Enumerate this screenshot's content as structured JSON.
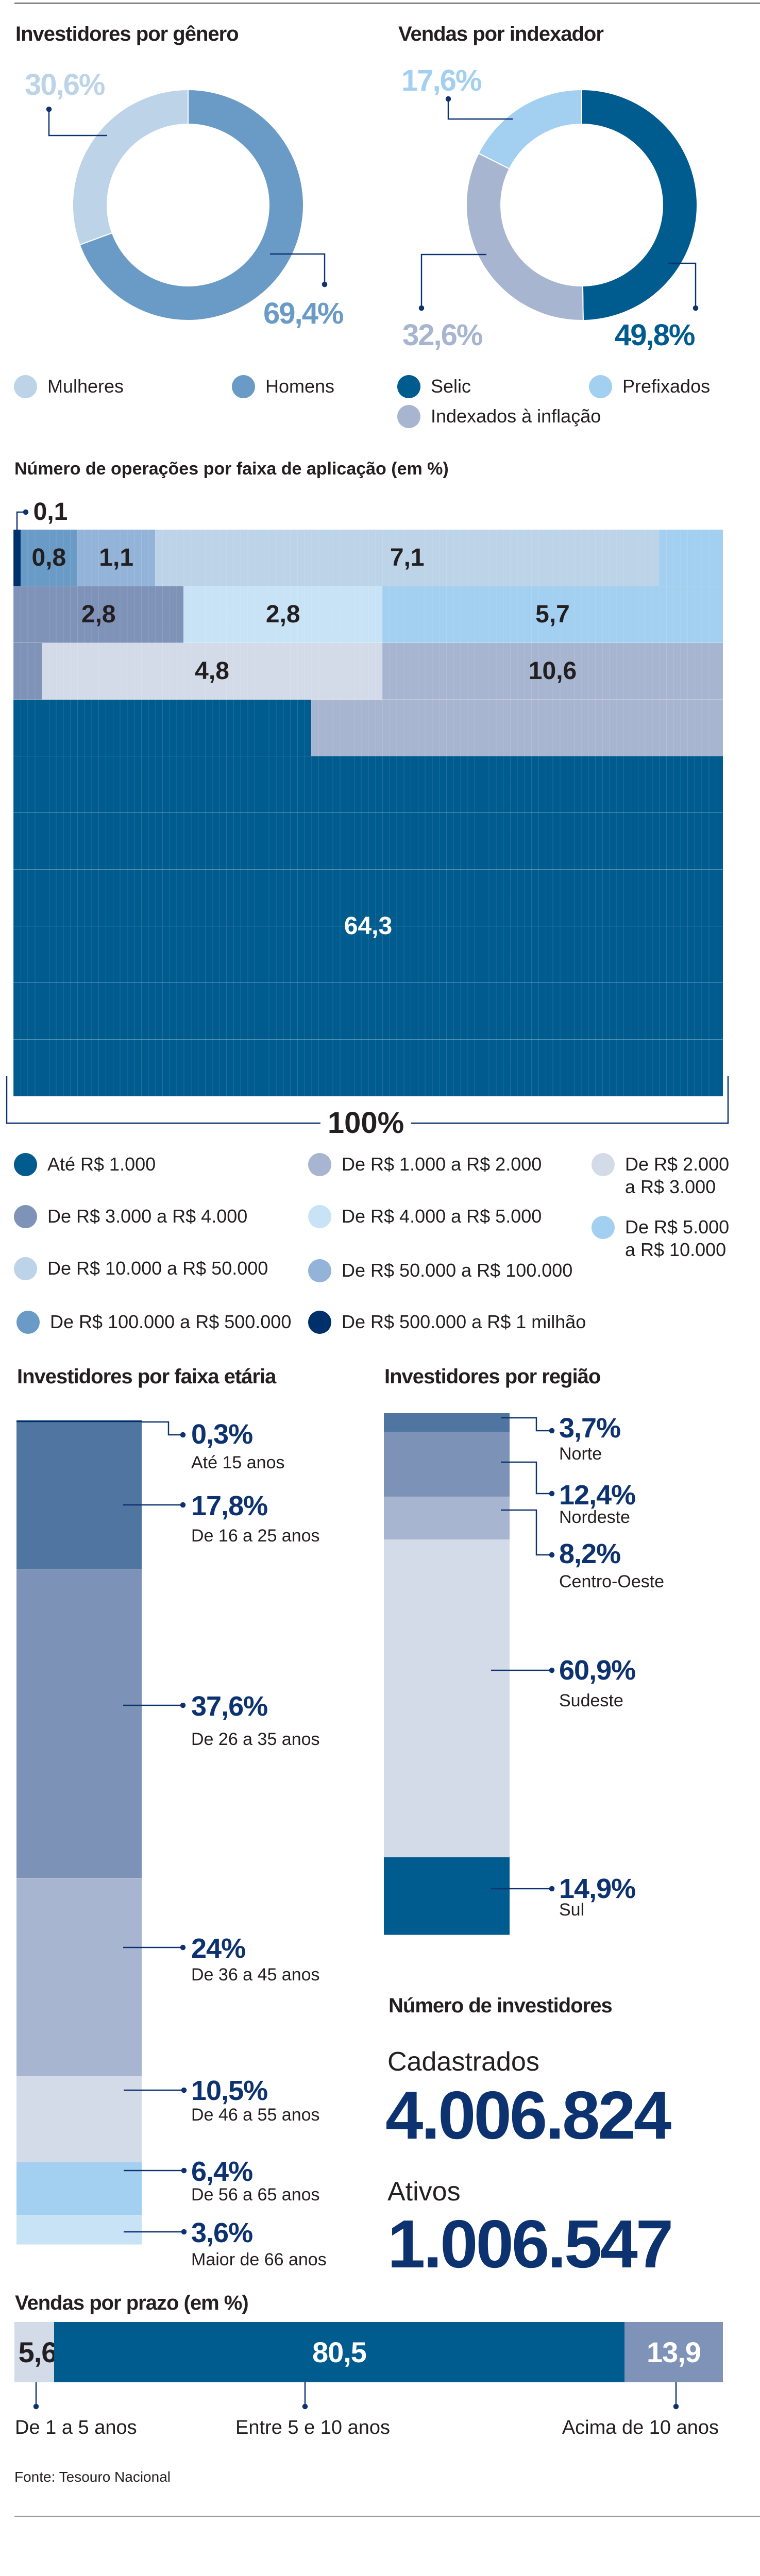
{
  "colors": {
    "navy_text": "#0d3270",
    "leader": "#0d3270"
  },
  "chart_data": [
    {
      "id": "genero",
      "type": "pie",
      "title": "Investidores por gênero",
      "slices": [
        {
          "name": "Homens",
          "value": 69.4,
          "label": "69,4%",
          "color": "#6a9bc6"
        },
        {
          "name": "Mulheres",
          "value": 30.6,
          "label": "30,6%",
          "color": "#bdd3e8"
        }
      ],
      "legend": [
        "Mulheres",
        "Homens"
      ]
    },
    {
      "id": "indexador",
      "type": "pie",
      "title": "Vendas por indexador",
      "slices": [
        {
          "name": "Selic",
          "value": 49.8,
          "label": "49,8%",
          "color": "#005b8f"
        },
        {
          "name": "Indexados à inflação",
          "value": 32.6,
          "label": "32,6%",
          "color": "#a7b5d0"
        },
        {
          "name": "Prefixados",
          "value": 17.6,
          "label": "17,6%",
          "color": "#a3cff0"
        }
      ],
      "legend": [
        "Selic",
        "Prefixados",
        "Indexados à inflação"
      ]
    },
    {
      "id": "operacoes",
      "type": "heatmap",
      "title": "Número de operações por faixa de aplicação (em %)",
      "total_label": "100%",
      "categories": [
        {
          "name": "Até R$ 1.000",
          "value": 64.3,
          "label": "64,3",
          "color": "#005b8f",
          "text_color": "#ffffff"
        },
        {
          "name": "De R$ 1.000 a R$ 2.000",
          "value": 10.6,
          "label": "10,6",
          "color": "#a7b5d0",
          "text_color": "#231f20"
        },
        {
          "name": "De R$ 2.000 a R$ 3.000",
          "value": 4.8,
          "label": "4,8",
          "color": "#d4dbe8",
          "text_color": "#231f20"
        },
        {
          "name": "De R$ 3.000 a R$ 4.000",
          "value": 2.8,
          "label": "2,8",
          "color": "#7f93b8",
          "text_color": "#231f20"
        },
        {
          "name": "De R$ 4.000 a R$ 5.000",
          "value": 2.8,
          "label": "2,8",
          "color": "#c8e3f6",
          "text_color": "#231f20"
        },
        {
          "name": "De R$ 5.000 a R$ 10.000",
          "value": 5.7,
          "label": "5,7",
          "color": "#a3cff0",
          "text_color": "#231f20"
        },
        {
          "name": "De R$ 10.000 a R$ 50.000",
          "value": 7.1,
          "label": "7,1",
          "color": "#bdd3e8",
          "text_color": "#231f20"
        },
        {
          "name": "De R$ 50.000 a R$ 100.000",
          "value": 1.1,
          "label": "1,1",
          "color": "#93b4d8",
          "text_color": "#231f20"
        },
        {
          "name": "De R$ 100.000 a R$ 500.000",
          "value": 0.8,
          "label": "0,8",
          "color": "#6a9bc6",
          "text_color": "#231f20"
        },
        {
          "name": "De R$ 500.000 a R$ 1 milhão",
          "value": 0.1,
          "label": "0,1",
          "color": "#00306b",
          "text_color": "#231f20"
        }
      ],
      "legend_lines": {
        "c2_line1": "De R$ 2.000",
        "c2_line2": "a R$ 3.000",
        "c5_line1": "De R$ 5.000",
        "c5_line2": "a R$ 10.000"
      }
    },
    {
      "id": "faixa_etaria",
      "type": "bar",
      "title": "Investidores por faixa etária",
      "segments": [
        {
          "name": "Até 15 anos",
          "value": 0.3,
          "label": "0,3%",
          "color": "#00306b"
        },
        {
          "name": "De 16 a 25 anos",
          "value": 17.8,
          "label": "17,8%",
          "color": "#5075a0"
        },
        {
          "name": "De 26 a 35 anos",
          "value": 37.6,
          "label": "37,6%",
          "color": "#7c92b7"
        },
        {
          "name": "De 36 a 45 anos",
          "value": 24,
          "label": "24%",
          "color": "#a7b5d0"
        },
        {
          "name": "De 46 a 55 anos",
          "value": 10.5,
          "label": "10,5%",
          "color": "#d4dbe8"
        },
        {
          "name": "De 56 a 65 anos",
          "value": 6.4,
          "label": "6,4%",
          "color": "#a3cff0"
        },
        {
          "name": "Maior de 66 anos",
          "value": 3.6,
          "label": "3,6%",
          "color": "#c8e3f6"
        }
      ]
    },
    {
      "id": "regiao",
      "type": "bar",
      "title": "Investidores por região",
      "segments": [
        {
          "name": "Norte",
          "value": 3.7,
          "label": "3,7%",
          "color": "#5075a0"
        },
        {
          "name": "Nordeste",
          "value": 12.4,
          "label": "12,4%",
          "color": "#7c92b7"
        },
        {
          "name": "Centro-Oeste",
          "value": 8.2,
          "label": "8,2%",
          "color": "#a7b5d0"
        },
        {
          "name": "Sudeste",
          "value": 60.9,
          "label": "60,9%",
          "color": "#d4dbe8"
        },
        {
          "name": "Sul",
          "value": 14.9,
          "label": "14,9%",
          "color": "#005b8f"
        }
      ]
    },
    {
      "id": "prazo",
      "type": "bar",
      "title": "Vendas por prazo (em %)",
      "segments": [
        {
          "name": "De 1 a 5 anos",
          "value": 5.6,
          "label": "5,6",
          "color": "#d4dbe8",
          "text_color": "#231f20"
        },
        {
          "name": "Entre 5 e 10 anos",
          "value": 80.5,
          "label": "80,5",
          "color": "#005b8f",
          "text_color": "#ffffff"
        },
        {
          "name": "Acima de 10 anos",
          "value": 13.9,
          "label": "13,9",
          "color": "#7f93b8",
          "text_color": "#ffffff"
        }
      ]
    }
  ],
  "investidores": {
    "title": "Número de investidores",
    "cadastrados_label": "Cadastrados",
    "cadastrados_value": "4.006.824",
    "ativos_label": "Ativos",
    "ativos_value": "1.006.547"
  },
  "source": "Fonte: Tesouro Nacional"
}
